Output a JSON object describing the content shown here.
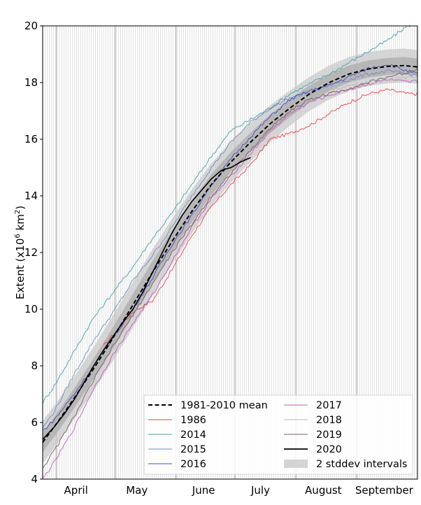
{
  "chart_data": {
    "type": "line",
    "title": "",
    "xlabel": "",
    "ylabel": "Extent (x10",
    "ylabel_sup": "6",
    "ylabel_tail": " km",
    "ylabel_sup2": "2",
    "ylabel_close": ")",
    "xlim": [
      84,
      275
    ],
    "ylim": [
      4,
      20
    ],
    "yticks": [
      4,
      6,
      8,
      10,
      12,
      14,
      16,
      18,
      20
    ],
    "month_labels": [
      {
        "label": "April",
        "day": 101
      },
      {
        "label": "May",
        "day": 132
      },
      {
        "label": "June",
        "day": 166
      },
      {
        "label": "July",
        "day": 195
      },
      {
        "label": "August",
        "day": 227
      },
      {
        "label": "September",
        "day": 258
      }
    ],
    "month_boundaries": [
      91,
      121,
      152,
      182,
      213,
      244
    ],
    "mean": {
      "name": "1981-2010 mean",
      "color": "#000000",
      "x": [
        84,
        91,
        100,
        110,
        120,
        130,
        140,
        150,
        160,
        170,
        180,
        190,
        200,
        210,
        220,
        230,
        240,
        250,
        260,
        268,
        275
      ],
      "y": [
        5.3,
        5.95,
        6.85,
        7.9,
        9.0,
        10.15,
        11.3,
        12.4,
        13.45,
        14.4,
        15.2,
        15.9,
        16.55,
        17.1,
        17.6,
        18.0,
        18.3,
        18.48,
        18.57,
        18.6,
        18.55
      ]
    },
    "band_1sd": {
      "x": [
        84,
        100,
        120,
        140,
        160,
        180,
        200,
        220,
        240,
        260,
        275
      ],
      "half_width": [
        0.35,
        0.35,
        0.38,
        0.4,
        0.38,
        0.35,
        0.33,
        0.3,
        0.3,
        0.3,
        0.3
      ]
    },
    "band_2sd": {
      "name": "2 stddev intervals",
      "x": [
        84,
        100,
        120,
        140,
        160,
        180,
        200,
        220,
        240,
        260,
        275
      ],
      "half_width": [
        0.75,
        0.75,
        0.8,
        0.82,
        0.78,
        0.72,
        0.65,
        0.6,
        0.6,
        0.6,
        0.6
      ]
    },
    "series": [
      {
        "name": "1986",
        "color": "#e8413f",
        "width": 0.9,
        "x": [
          115,
          120,
          130,
          140,
          150,
          160,
          170,
          180,
          190,
          200,
          210,
          220,
          230,
          240,
          250,
          260,
          270,
          275
        ],
        "y": [
          8.7,
          9.1,
          9.9,
          10.3,
          11.4,
          12.6,
          13.6,
          14.4,
          15.1,
          16.0,
          16.2,
          16.5,
          16.9,
          17.3,
          17.6,
          17.75,
          17.6,
          17.6
        ]
      },
      {
        "name": "2014",
        "color": "#3fa1a8",
        "width": 0.9,
        "x": [
          84,
          90,
          100,
          110,
          120,
          130,
          140,
          150,
          160,
          170,
          180,
          190,
          200,
          210,
          220,
          230,
          240,
          250,
          260,
          270,
          275
        ],
        "y": [
          6.7,
          7.3,
          8.5,
          9.7,
          10.6,
          11.5,
          12.5,
          13.4,
          14.4,
          15.4,
          16.3,
          16.7,
          17.1,
          17.6,
          17.95,
          18.3,
          18.7,
          19.1,
          19.5,
          20.0,
          20.1
        ]
      },
      {
        "name": "2015",
        "color": "#6b8fbf",
        "width": 0.9,
        "x": [
          84,
          90,
          100,
          110,
          120,
          130,
          140,
          150,
          160,
          170,
          180,
          190,
          200,
          210,
          220,
          230,
          240,
          250,
          260,
          270,
          275
        ],
        "y": [
          5.8,
          6.4,
          7.7,
          8.9,
          9.9,
          11.0,
          11.9,
          12.9,
          14.0,
          15.0,
          15.9,
          16.6,
          17.1,
          17.45,
          17.65,
          17.9,
          18.1,
          18.3,
          18.4,
          18.3,
          18.25
        ]
      },
      {
        "name": "2016",
        "color": "#4a4ac8",
        "width": 0.9,
        "x": [
          84,
          90,
          100,
          110,
          120,
          130,
          140,
          150,
          160,
          170,
          180,
          190,
          200,
          210,
          220,
          230,
          240,
          250,
          260,
          270,
          275
        ],
        "y": [
          5.7,
          6.1,
          7.0,
          8.0,
          9.0,
          10.0,
          11.1,
          12.3,
          13.3,
          14.4,
          15.3,
          16.1,
          16.8,
          17.4,
          17.7,
          17.9,
          18.2,
          18.5,
          18.65,
          18.4,
          18.3
        ]
      },
      {
        "name": "2017",
        "color": "#c45bc4",
        "width": 0.9,
        "x": [
          84,
          90,
          100,
          110,
          120,
          130,
          140,
          150,
          160,
          170,
          180,
          190,
          200,
          210,
          220,
          230,
          240,
          250,
          260,
          270,
          275
        ],
        "y": [
          4.0,
          4.6,
          5.8,
          7.2,
          8.4,
          9.5,
          10.5,
          11.7,
          12.9,
          13.9,
          14.7,
          15.5,
          16.3,
          16.9,
          17.3,
          17.55,
          17.75,
          17.95,
          18.1,
          18.0,
          18.05
        ]
      },
      {
        "name": "2018",
        "color": "#b8b8b8",
        "width": 0.9,
        "x": [
          84,
          90,
          100,
          110,
          120,
          130,
          140,
          150,
          160,
          170,
          180,
          190,
          200,
          210,
          220,
          230,
          240,
          250,
          260,
          270,
          275
        ],
        "y": [
          5.0,
          5.6,
          6.7,
          7.8,
          8.8,
          9.8,
          10.9,
          12.1,
          13.2,
          14.2,
          15.0,
          15.8,
          16.6,
          17.2,
          17.5,
          17.7,
          17.9,
          18.0,
          18.1,
          18.2,
          18.25
        ]
      },
      {
        "name": "2019",
        "color": "#7a6060",
        "width": 0.9,
        "x": [
          84,
          90,
          100,
          110,
          120,
          130,
          140,
          150,
          160,
          170,
          180,
          190,
          200,
          210,
          220,
          230,
          240,
          250,
          260,
          270,
          275
        ],
        "y": [
          4.4,
          5.0,
          6.2,
          7.5,
          8.7,
          9.8,
          10.9,
          12.0,
          13.0,
          14.0,
          14.8,
          15.6,
          16.4,
          17.0,
          17.4,
          17.6,
          17.8,
          18.0,
          18.2,
          18.35,
          18.5
        ]
      },
      {
        "name": "2020",
        "color": "#000000",
        "width": 1.6,
        "x": [
          84,
          90,
          95,
          100,
          105,
          110,
          115,
          120,
          125,
          130,
          135,
          140,
          145,
          150,
          155,
          160,
          165,
          170,
          175,
          180,
          185,
          190
        ],
        "y": [
          5.4,
          5.85,
          6.3,
          6.8,
          7.4,
          8.0,
          8.55,
          9.05,
          9.55,
          10.0,
          10.6,
          11.3,
          12.0,
          12.7,
          13.3,
          13.8,
          14.2,
          14.6,
          14.9,
          15.0,
          15.2,
          15.35
        ]
      }
    ],
    "legend": {
      "placement": "lower-right",
      "col1": [
        "1981-2010 mean",
        "1986",
        "2014",
        "2015",
        "2016"
      ],
      "col2": [
        "2017",
        "2018",
        "2019",
        "2020",
        "2 stddev intervals"
      ]
    }
  }
}
